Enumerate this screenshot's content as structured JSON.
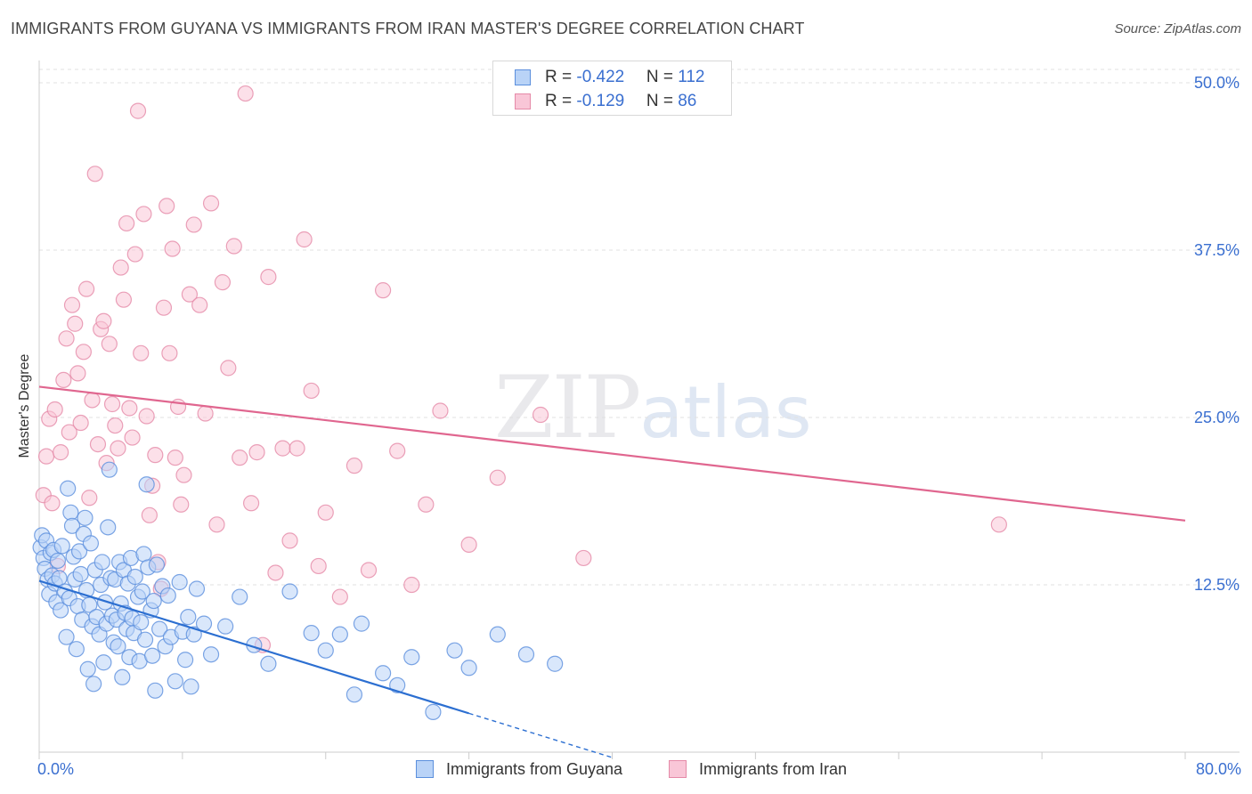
{
  "title": "IMMIGRANTS FROM GUYANA VS IMMIGRANTS FROM IRAN MASTER'S DEGREE CORRELATION CHART",
  "source": "Source: ZipAtlas.com",
  "watermark": {
    "zip": "ZIP",
    "atlas": "atlas"
  },
  "legend_top": {
    "rows": [
      {
        "r_label": "R = ",
        "r_value": "-0.422",
        "n_label": "N = ",
        "n_value": "112"
      },
      {
        "r_label": "R = ",
        "r_value": "-0.129",
        "n_label": "N = ",
        "n_value": "86"
      }
    ]
  },
  "colors": {
    "guyana_fill": "#b9d3f7",
    "guyana_stroke": "#5b8fdd",
    "guyana_line": "#2c6fd1",
    "iran_fill": "#f9c6d7",
    "iran_stroke": "#e58aa8",
    "iran_line": "#e0668f",
    "tick_label": "#3a6fd0",
    "grid": "#e0e0e0"
  },
  "chart_data": {
    "type": "scatter",
    "title": "IMMIGRANTS FROM GUYANA VS IMMIGRANTS FROM IRAN MASTER'S DEGREE CORRELATION CHART",
    "xlabel": "",
    "ylabel": "Master's Degree",
    "xlim": [
      0,
      80
    ],
    "ylim": [
      0,
      51
    ],
    "x_tick_labels": [
      "0.0%",
      "80.0%"
    ],
    "y_ticks": [
      12.5,
      25.0,
      37.5,
      50.0
    ],
    "y_tick_labels": [
      "12.5%",
      "25.0%",
      "37.5%",
      "50.0%"
    ],
    "grid": true,
    "legend_position": "bottom",
    "series": [
      {
        "name": "Immigrants from Guyana",
        "trend": {
          "x": [
            0,
            30,
            40
          ],
          "y": [
            12.8,
            2.9,
            -0.4
          ]
        },
        "points": [
          [
            0.1,
            15.3
          ],
          [
            0.2,
            16.2
          ],
          [
            0.3,
            14.5
          ],
          [
            0.4,
            13.7
          ],
          [
            0.5,
            15.8
          ],
          [
            0.6,
            12.9
          ],
          [
            0.7,
            11.8
          ],
          [
            0.8,
            14.9
          ],
          [
            0.9,
            13.2
          ],
          [
            1.0,
            15.1
          ],
          [
            1.1,
            12.6
          ],
          [
            1.2,
            11.2
          ],
          [
            1.3,
            14.3
          ],
          [
            1.4,
            13.0
          ],
          [
            1.5,
            10.6
          ],
          [
            1.6,
            15.4
          ],
          [
            1.8,
            12.0
          ],
          [
            1.9,
            8.6
          ],
          [
            2.0,
            19.7
          ],
          [
            2.1,
            11.5
          ],
          [
            2.2,
            17.9
          ],
          [
            2.3,
            16.9
          ],
          [
            2.4,
            14.6
          ],
          [
            2.5,
            12.9
          ],
          [
            2.6,
            7.7
          ],
          [
            2.7,
            10.9
          ],
          [
            2.8,
            15.0
          ],
          [
            2.9,
            13.3
          ],
          [
            3.0,
            9.9
          ],
          [
            3.1,
            16.3
          ],
          [
            3.2,
            17.5
          ],
          [
            3.3,
            12.1
          ],
          [
            3.4,
            6.2
          ],
          [
            3.5,
            11.0
          ],
          [
            3.6,
            15.6
          ],
          [
            3.7,
            9.4
          ],
          [
            3.8,
            5.1
          ],
          [
            3.9,
            13.6
          ],
          [
            4.0,
            10.1
          ],
          [
            4.2,
            8.8
          ],
          [
            4.3,
            12.5
          ],
          [
            4.4,
            14.2
          ],
          [
            4.5,
            6.7
          ],
          [
            4.6,
            11.2
          ],
          [
            4.7,
            9.6
          ],
          [
            4.8,
            16.8
          ],
          [
            4.9,
            21.1
          ],
          [
            5.0,
            13.0
          ],
          [
            5.1,
            10.2
          ],
          [
            5.2,
            8.2
          ],
          [
            5.3,
            12.9
          ],
          [
            5.4,
            9.9
          ],
          [
            5.5,
            7.9
          ],
          [
            5.6,
            14.2
          ],
          [
            5.7,
            11.1
          ],
          [
            5.8,
            5.6
          ],
          [
            5.9,
            13.6
          ],
          [
            6.0,
            10.4
          ],
          [
            6.1,
            9.2
          ],
          [
            6.2,
            12.6
          ],
          [
            6.3,
            7.1
          ],
          [
            6.4,
            14.5
          ],
          [
            6.5,
            10.0
          ],
          [
            6.6,
            8.9
          ],
          [
            6.7,
            13.1
          ],
          [
            6.9,
            11.6
          ],
          [
            7.0,
            6.8
          ],
          [
            7.1,
            9.7
          ],
          [
            7.2,
            12.0
          ],
          [
            7.3,
            14.8
          ],
          [
            7.4,
            8.4
          ],
          [
            7.5,
            20.0
          ],
          [
            7.6,
            13.8
          ],
          [
            7.8,
            10.6
          ],
          [
            7.9,
            7.2
          ],
          [
            8.0,
            11.3
          ],
          [
            8.1,
            4.6
          ],
          [
            8.2,
            14.0
          ],
          [
            8.4,
            9.2
          ],
          [
            8.6,
            12.4
          ],
          [
            8.8,
            7.9
          ],
          [
            9.0,
            11.7
          ],
          [
            9.2,
            8.6
          ],
          [
            9.5,
            5.3
          ],
          [
            9.8,
            12.7
          ],
          [
            10.0,
            9.0
          ],
          [
            10.2,
            6.9
          ],
          [
            10.4,
            10.1
          ],
          [
            10.6,
            4.9
          ],
          [
            10.8,
            8.8
          ],
          [
            11.0,
            12.2
          ],
          [
            11.5,
            9.6
          ],
          [
            12.0,
            7.3
          ],
          [
            13.0,
            9.4
          ],
          [
            14.0,
            11.6
          ],
          [
            15.0,
            8.0
          ],
          [
            16.0,
            6.6
          ],
          [
            17.5,
            12.0
          ],
          [
            19.0,
            8.9
          ],
          [
            20.0,
            7.6
          ],
          [
            21.0,
            8.8
          ],
          [
            22.0,
            4.3
          ],
          [
            22.5,
            9.6
          ],
          [
            24.0,
            5.9
          ],
          [
            26.0,
            7.1
          ],
          [
            29.0,
            7.6
          ],
          [
            30.0,
            6.3
          ],
          [
            32.0,
            8.8
          ],
          [
            34.0,
            7.3
          ],
          [
            36.0,
            6.6
          ],
          [
            25.0,
            5.0
          ],
          [
            27.5,
            3.0
          ]
        ]
      },
      {
        "name": "Immigrants from Iran",
        "trend": {
          "x": [
            0,
            80
          ],
          "y": [
            27.3,
            17.3
          ]
        },
        "points": [
          [
            0.3,
            19.2
          ],
          [
            0.5,
            22.1
          ],
          [
            0.7,
            24.9
          ],
          [
            0.9,
            18.6
          ],
          [
            1.1,
            25.6
          ],
          [
            1.3,
            13.9
          ],
          [
            1.5,
            22.4
          ],
          [
            1.7,
            27.8
          ],
          [
            1.9,
            30.9
          ],
          [
            2.1,
            23.9
          ],
          [
            2.3,
            33.4
          ],
          [
            2.5,
            32.0
          ],
          [
            2.7,
            28.3
          ],
          [
            2.9,
            24.6
          ],
          [
            3.1,
            29.9
          ],
          [
            3.3,
            34.6
          ],
          [
            3.5,
            19.0
          ],
          [
            3.7,
            26.3
          ],
          [
            3.9,
            43.2
          ],
          [
            4.1,
            23.0
          ],
          [
            4.3,
            31.6
          ],
          [
            4.5,
            32.2
          ],
          [
            4.7,
            21.6
          ],
          [
            4.9,
            30.5
          ],
          [
            5.1,
            26.0
          ],
          [
            5.3,
            24.4
          ],
          [
            5.5,
            22.7
          ],
          [
            5.7,
            36.2
          ],
          [
            5.9,
            33.8
          ],
          [
            6.1,
            39.5
          ],
          [
            6.3,
            25.7
          ],
          [
            6.5,
            23.5
          ],
          [
            6.7,
            37.2
          ],
          [
            6.9,
            47.9
          ],
          [
            7.1,
            29.8
          ],
          [
            7.3,
            40.2
          ],
          [
            7.5,
            25.1
          ],
          [
            7.7,
            17.7
          ],
          [
            7.9,
            19.9
          ],
          [
            8.1,
            22.2
          ],
          [
            8.3,
            14.2
          ],
          [
            8.5,
            12.2
          ],
          [
            8.7,
            33.2
          ],
          [
            8.9,
            40.8
          ],
          [
            9.1,
            29.8
          ],
          [
            9.3,
            37.6
          ],
          [
            9.5,
            22.0
          ],
          [
            9.7,
            25.8
          ],
          [
            9.9,
            18.5
          ],
          [
            10.1,
            20.7
          ],
          [
            10.5,
            34.2
          ],
          [
            10.8,
            39.4
          ],
          [
            11.2,
            33.4
          ],
          [
            11.6,
            25.3
          ],
          [
            12.0,
            41.0
          ],
          [
            12.4,
            17.0
          ],
          [
            12.8,
            35.1
          ],
          [
            13.2,
            28.7
          ],
          [
            13.6,
            37.8
          ],
          [
            14.0,
            22.0
          ],
          [
            14.4,
            49.2
          ],
          [
            14.8,
            18.6
          ],
          [
            15.2,
            22.4
          ],
          [
            15.6,
            8.0
          ],
          [
            16.0,
            35.5
          ],
          [
            16.5,
            13.4
          ],
          [
            17.0,
            22.7
          ],
          [
            17.5,
            15.8
          ],
          [
            18.0,
            22.7
          ],
          [
            18.5,
            38.3
          ],
          [
            19.0,
            27.0
          ],
          [
            19.5,
            13.9
          ],
          [
            20.0,
            17.9
          ],
          [
            21.0,
            11.6
          ],
          [
            22.0,
            21.4
          ],
          [
            23.0,
            13.6
          ],
          [
            24.0,
            34.5
          ],
          [
            25.0,
            22.5
          ],
          [
            26.0,
            12.5
          ],
          [
            27.0,
            18.5
          ],
          [
            28.0,
            25.5
          ],
          [
            30.0,
            15.5
          ],
          [
            32.0,
            20.5
          ],
          [
            35.0,
            25.2
          ],
          [
            38.0,
            14.5
          ],
          [
            67.0,
            17.0
          ]
        ]
      }
    ]
  },
  "legend_bottom": {
    "items": [
      {
        "label": "Immigrants from Guyana"
      },
      {
        "label": "Immigrants from Iran"
      }
    ]
  }
}
